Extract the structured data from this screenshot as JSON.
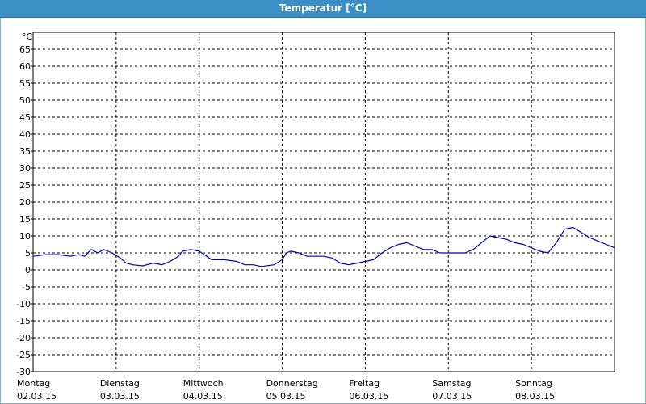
{
  "window": {
    "title": "Temperatur [°C]"
  },
  "chart_data": {
    "type": "line",
    "title": "Temperatur [°C]",
    "ylabel": "°C",
    "xlabel": "",
    "ylim": [
      -30,
      70
    ],
    "yticks": [
      -30,
      -25,
      -20,
      -15,
      -10,
      -5,
      0,
      5,
      10,
      15,
      20,
      25,
      30,
      35,
      40,
      45,
      50,
      55,
      60,
      65
    ],
    "xlim": [
      0,
      7
    ],
    "x_unit": "days",
    "grid": true,
    "days": [
      {
        "name": "Montag",
        "date": "02.03.15"
      },
      {
        "name": "Dienstag",
        "date": "03.03.15"
      },
      {
        "name": "Mittwoch",
        "date": "04.03.15"
      },
      {
        "name": "Donnerstag",
        "date": "05.03.15"
      },
      {
        "name": "Freitag",
        "date": "06.03.15"
      },
      {
        "name": "Samstag",
        "date": "07.03.15"
      },
      {
        "name": "Sonntag",
        "date": "08.03.15"
      }
    ],
    "series": [
      {
        "color": "#0000c0",
        "x": [
          0,
          0.15,
          0.3,
          0.45,
          0.55,
          0.62,
          0.7,
          0.78,
          0.85,
          0.95,
          1.05,
          1.12,
          1.2,
          1.32,
          1.45,
          1.55,
          1.65,
          1.75,
          1.8,
          1.9,
          2.0,
          2.15,
          2.3,
          2.45,
          2.55,
          2.65,
          2.75,
          2.9,
          3.0,
          3.05,
          3.1,
          3.2,
          3.3,
          3.4,
          3.5,
          3.6,
          3.7,
          3.8,
          3.9,
          4.0,
          4.1,
          4.2,
          4.3,
          4.4,
          4.5,
          4.6,
          4.7,
          4.8,
          4.9,
          5.0,
          5.1,
          5.2,
          5.3,
          5.4,
          5.5,
          5.6,
          5.7,
          5.8,
          5.9,
          6.0,
          6.1,
          6.2,
          6.3,
          6.4,
          6.5,
          6.6,
          6.7,
          6.8,
          6.9,
          7.0
        ],
        "y": [
          4,
          4.5,
          4.5,
          4,
          4.5,
          4,
          6,
          5,
          6,
          5,
          3.5,
          2,
          1.5,
          1.2,
          2,
          1.5,
          2.5,
          4,
          5.5,
          6,
          5.5,
          3,
          3,
          2.5,
          1.5,
          1.5,
          1,
          1.5,
          3,
          5,
          5.5,
          5,
          4,
          4,
          4,
          3.5,
          2,
          1.5,
          2,
          2.5,
          3,
          5,
          6.5,
          7.5,
          8,
          7,
          6,
          6,
          5,
          5,
          5,
          5,
          6,
          8,
          10,
          9.5,
          9,
          8,
          7.5,
          6.5,
          5.5,
          5,
          8,
          12,
          12.5,
          11,
          9.5,
          8.5,
          7.5,
          6.5
        ]
      }
    ]
  }
}
